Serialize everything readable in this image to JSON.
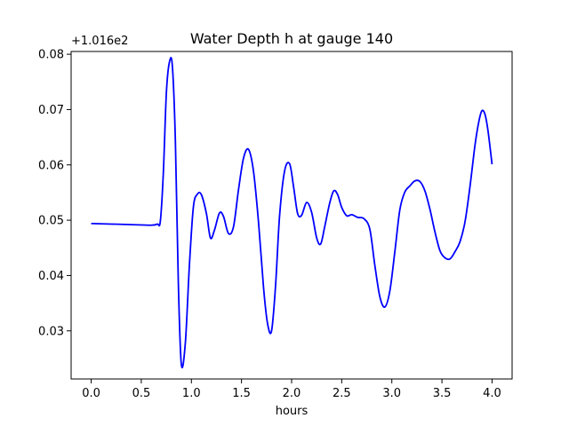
{
  "chart_data": {
    "type": "line",
    "title": "Water Depth h at gauge 140",
    "xlabel": "hours",
    "ylabel": "",
    "y_offset_label": "+1.016e2",
    "xlim": [
      -0.2,
      4.2
    ],
    "ylim": [
      0.0213,
      0.0805
    ],
    "x_ticks": [
      0.0,
      0.5,
      1.0,
      1.5,
      2.0,
      2.5,
      3.0,
      3.5,
      4.0
    ],
    "x_tick_labels": [
      "0.0",
      "0.5",
      "1.0",
      "1.5",
      "2.0",
      "2.5",
      "3.0",
      "3.5",
      "4.0"
    ],
    "y_ticks": [
      0.03,
      0.04,
      0.05,
      0.06,
      0.07,
      0.08
    ],
    "y_tick_labels": [
      "0.03",
      "0.04",
      "0.05",
      "0.06",
      "0.07",
      "0.08"
    ],
    "grid": false,
    "series": [
      {
        "color": "#0000ff",
        "x": [
          0.0,
          0.2,
          0.4,
          0.6,
          0.66,
          0.69,
          0.72,
          0.75,
          0.78,
          0.81,
          0.84,
          0.87,
          0.9,
          0.94,
          0.98,
          1.02,
          1.06,
          1.1,
          1.15,
          1.19,
          1.23,
          1.28,
          1.32,
          1.37,
          1.42,
          1.47,
          1.52,
          1.57,
          1.62,
          1.67,
          1.72,
          1.76,
          1.8,
          1.84,
          1.88,
          1.93,
          1.98,
          2.02,
          2.06,
          2.1,
          2.15,
          2.2,
          2.25,
          2.29,
          2.33,
          2.38,
          2.42,
          2.46,
          2.5,
          2.55,
          2.6,
          2.66,
          2.72,
          2.78,
          2.83,
          2.88,
          2.93,
          2.98,
          3.03,
          3.08,
          3.13,
          3.18,
          3.23,
          3.28,
          3.33,
          3.38,
          3.43,
          3.48,
          3.53,
          3.58,
          3.63,
          3.68,
          3.73,
          3.78,
          3.83,
          3.87,
          3.9,
          3.93,
          3.96,
          4.0
        ],
        "y": [
          0.0494,
          0.0493,
          0.0492,
          0.0491,
          0.0493,
          0.0498,
          0.0585,
          0.0729,
          0.0785,
          0.0779,
          0.0645,
          0.0385,
          0.0239,
          0.0279,
          0.0418,
          0.0524,
          0.0547,
          0.0546,
          0.0512,
          0.0468,
          0.0482,
          0.0513,
          0.0507,
          0.0476,
          0.0488,
          0.0555,
          0.0612,
          0.0628,
          0.0588,
          0.0496,
          0.0378,
          0.0313,
          0.03,
          0.0382,
          0.0508,
          0.0589,
          0.0602,
          0.056,
          0.0512,
          0.0509,
          0.0532,
          0.0514,
          0.0468,
          0.0457,
          0.0488,
          0.0531,
          0.0553,
          0.0546,
          0.0523,
          0.0508,
          0.051,
          0.0505,
          0.0503,
          0.0484,
          0.0419,
          0.0362,
          0.0343,
          0.0372,
          0.0443,
          0.0519,
          0.0551,
          0.0562,
          0.0571,
          0.057,
          0.0553,
          0.052,
          0.0479,
          0.0445,
          0.0432,
          0.043,
          0.0443,
          0.0461,
          0.0497,
          0.0561,
          0.0636,
          0.068,
          0.0698,
          0.0691,
          0.0661,
          0.0601
        ]
      }
    ]
  }
}
